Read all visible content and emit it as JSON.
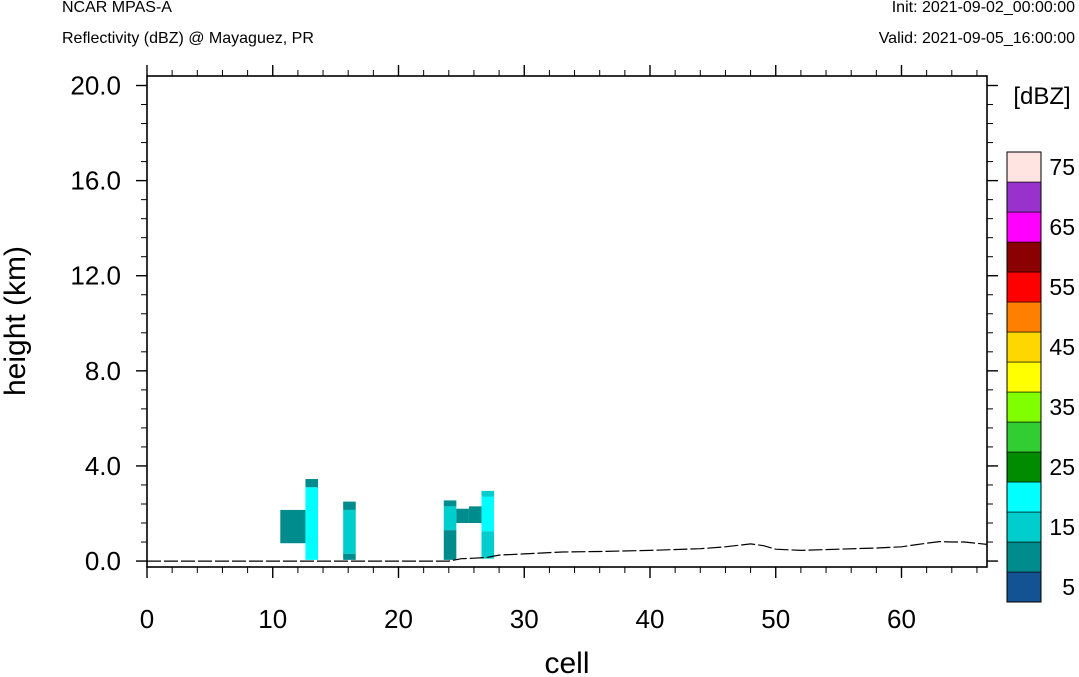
{
  "header": {
    "model": "NCAR MPAS-A",
    "field": "Reflectivity (dBZ) @ Mayaguez, PR",
    "init": "Init: 2021-09-02_00:00:00",
    "valid": "Valid: 2021-09-05_16:00:00"
  },
  "chart_data": {
    "type": "heatmap",
    "title": "Reflectivity (dBZ) @ Mayaguez, PR",
    "xlabel": "cell",
    "ylabel": "height (km)",
    "xlim": [
      0,
      66.8
    ],
    "ylim": [
      -0.25,
      20.4
    ],
    "x_ticks": [
      0,
      10,
      20,
      30,
      40,
      50,
      60
    ],
    "x_tick_labels": [
      "0",
      "10",
      "20",
      "30",
      "40",
      "50",
      "60"
    ],
    "y_ticks": [
      0,
      4,
      8,
      12,
      16,
      20
    ],
    "y_tick_labels": [
      "0.0",
      "4.0",
      "8.0",
      "12.0",
      "16.0",
      "20.0"
    ],
    "grid": false,
    "colorbar": {
      "title": "[dBZ]",
      "levels": [
        0,
        5,
        10,
        15,
        20,
        25,
        30,
        35,
        40,
        45,
        50,
        55,
        60,
        65,
        70,
        75
      ],
      "labels": [
        "5",
        "15",
        "25",
        "35",
        "45",
        "55",
        "65",
        "75"
      ],
      "colors": [
        "#135293",
        "#008c8c",
        "#00cdcd",
        "#00ffff",
        "#008b00",
        "#32cd32",
        "#7fff00",
        "#ffff00",
        "#ffd700",
        "#ff7f00",
        "#ff0000",
        "#8b0000",
        "#ff00ff",
        "#9932cc",
        "#ffe4e1"
      ]
    },
    "cells": [
      {
        "x0": 10.6,
        "x1": 12.6,
        "y0": 0.75,
        "y1": 2.15,
        "dbz": 5
      },
      {
        "x0": 12.6,
        "x1": 13.6,
        "y0": 3.1,
        "y1": 3.45,
        "dbz": 5
      },
      {
        "x0": 12.6,
        "x1": 13.6,
        "y0": 0.05,
        "y1": 3.1,
        "dbz": 15
      },
      {
        "x0": 15.6,
        "x1": 16.6,
        "y0": 2.15,
        "y1": 2.5,
        "dbz": 5
      },
      {
        "x0": 15.6,
        "x1": 16.6,
        "y0": 0.3,
        "y1": 2.15,
        "dbz": 10
      },
      {
        "x0": 15.6,
        "x1": 16.6,
        "y0": 0.05,
        "y1": 0.3,
        "dbz": 5
      },
      {
        "x0": 23.6,
        "x1": 24.6,
        "y0": 2.3,
        "y1": 2.55,
        "dbz": 5
      },
      {
        "x0": 23.6,
        "x1": 24.6,
        "y0": 1.3,
        "y1": 2.3,
        "dbz": 10
      },
      {
        "x0": 23.6,
        "x1": 24.6,
        "y0": 0.05,
        "y1": 1.3,
        "dbz": 5
      },
      {
        "x0": 24.6,
        "x1": 25.6,
        "y0": 1.6,
        "y1": 2.2,
        "dbz": 5
      },
      {
        "x0": 25.6,
        "x1": 26.6,
        "y0": 1.6,
        "y1": 2.3,
        "dbz": 5
      },
      {
        "x0": 26.6,
        "x1": 27.6,
        "y0": 2.7,
        "y1": 2.95,
        "dbz": 10
      },
      {
        "x0": 26.6,
        "x1": 27.6,
        "y0": 1.25,
        "y1": 2.7,
        "dbz": 15
      },
      {
        "x0": 26.6,
        "x1": 27.6,
        "y0": 0.1,
        "y1": 1.25,
        "dbz": 10
      }
    ],
    "terrain": {
      "x": [
        0,
        10,
        20,
        24,
        25,
        26,
        27,
        28,
        30,
        33,
        36,
        40,
        44,
        46,
        48,
        49,
        50,
        52,
        55,
        58,
        60,
        62,
        63,
        64,
        65,
        66.8
      ],
      "y": [
        0,
        0,
        0,
        0,
        0.1,
        0.12,
        0.15,
        0.25,
        0.3,
        0.38,
        0.4,
        0.45,
        0.52,
        0.6,
        0.72,
        0.65,
        0.5,
        0.45,
        0.5,
        0.55,
        0.6,
        0.75,
        0.82,
        0.8,
        0.8,
        0.7
      ]
    }
  }
}
